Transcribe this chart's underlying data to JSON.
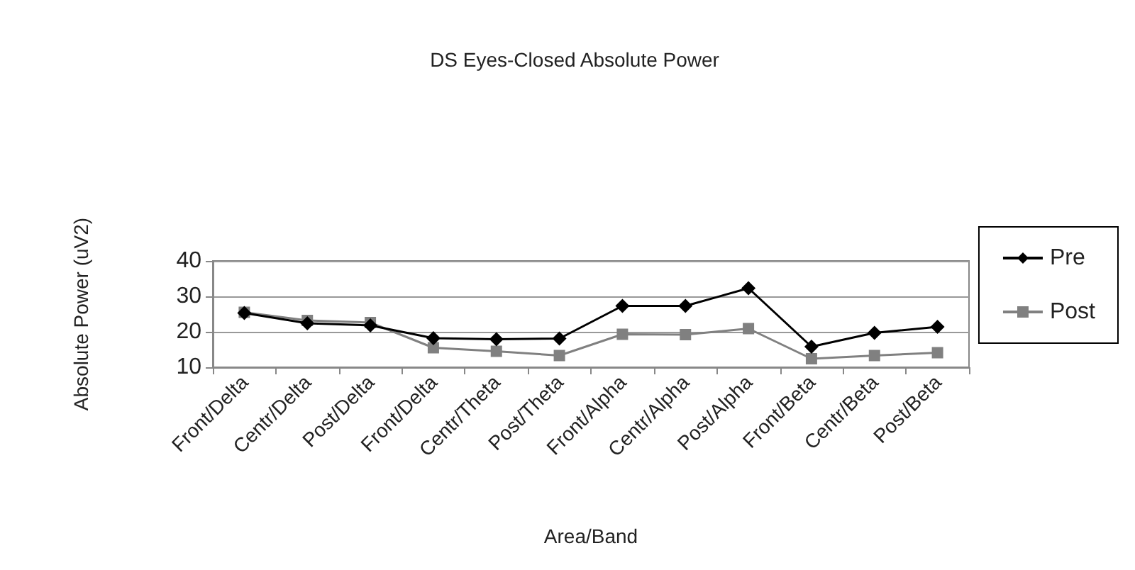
{
  "chart_data": {
    "type": "line",
    "title": "DS Eyes-Closed Absolute Power",
    "xlabel": "Area/Band",
    "ylabel": "Absolute Power (uV2)",
    "categories": [
      "Front/Delta",
      "Centr/Delta",
      "Post/Delta",
      "Front/Delta",
      "Centr/Theta",
      "Post/Theta",
      "Front/Alpha",
      "Centr/Alpha",
      "Post/Alpha",
      "Front/Beta",
      "Centr/Beta",
      "Post/Beta"
    ],
    "series": [
      {
        "name": "Pre",
        "color": "#000000",
        "marker": "diamond",
        "values": [
          25.3,
          22.4,
          21.8,
          18.2,
          17.9,
          18.1,
          27.3,
          27.3,
          32.3,
          15.8,
          19.7,
          21.4
        ]
      },
      {
        "name": "Post",
        "color": "#808080",
        "marker": "square",
        "values": [
          25.5,
          23.2,
          22.6,
          15.5,
          14.5,
          13.3,
          19.3,
          19.2,
          20.9,
          12.4,
          13.3,
          14.1
        ]
      }
    ],
    "ylim": [
      10,
      40
    ],
    "yticks": [
      10,
      20,
      30,
      40
    ],
    "grid": "y",
    "legend": "right"
  }
}
